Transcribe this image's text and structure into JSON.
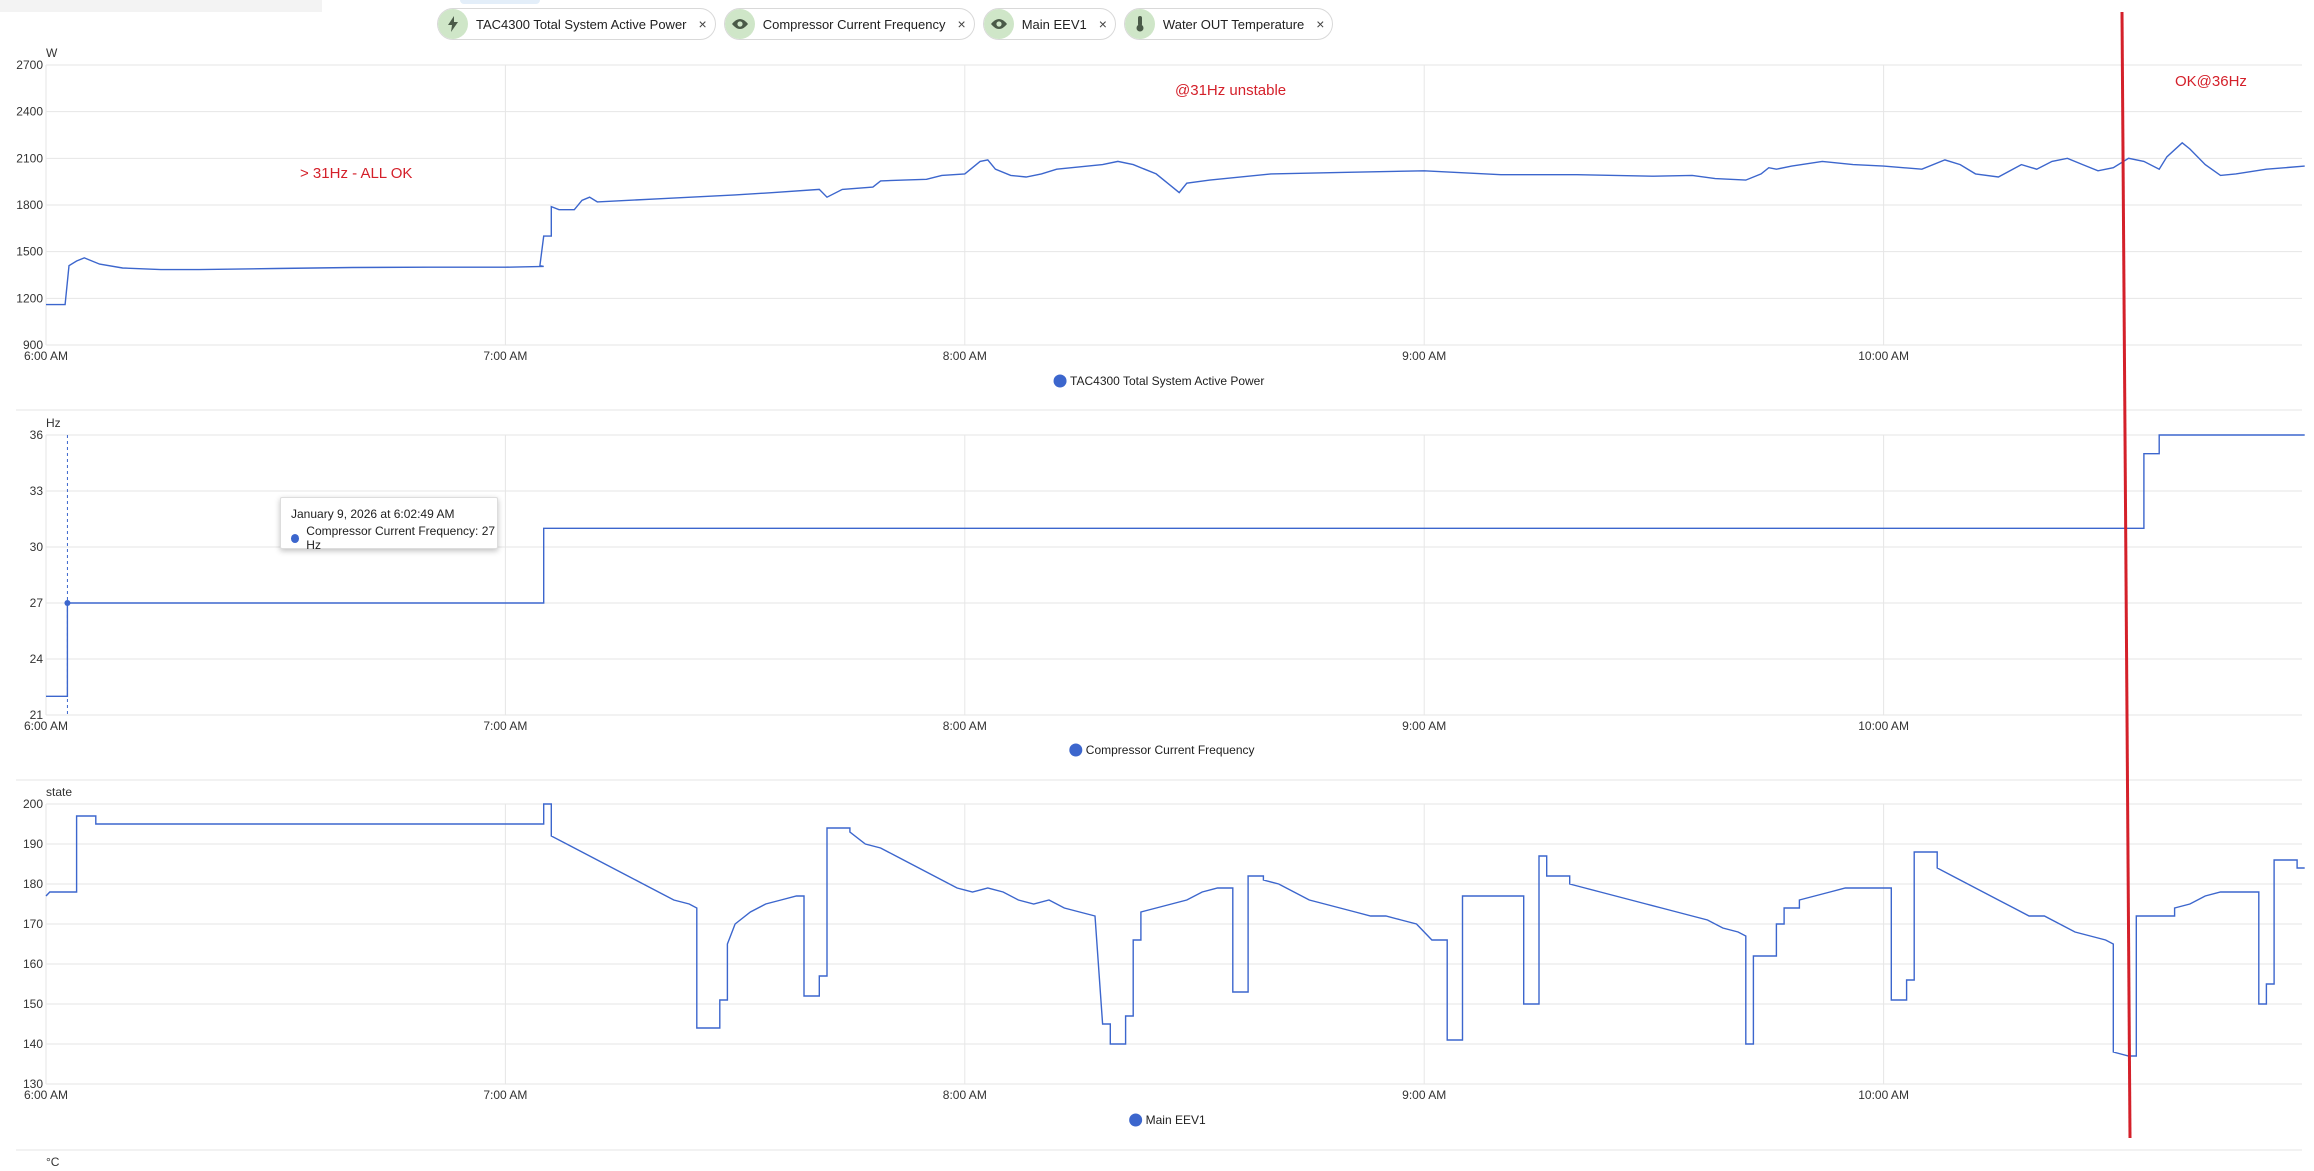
{
  "chips": [
    {
      "label": "TAC4300 Total System Active Power",
      "icon": "lightning-icon"
    },
    {
      "label": "Compressor Current Frequency",
      "icon": "eye-icon"
    },
    {
      "label": "Main EEV1",
      "icon": "eye-icon"
    },
    {
      "label": "Water OUT Temperature",
      "icon": "thermometer-icon"
    }
  ],
  "close_glyph": "×",
  "colors": {
    "series": "#3c66cd",
    "annotation": "#d4202a",
    "grid": "#e6e6e6",
    "chip_icon_bg": "#cfe6c8"
  },
  "tooltip": {
    "title": "January 9, 2026 at 6:02:49 AM",
    "text": "Compressor Current Frequency: 27 Hz"
  },
  "annotations": [
    "> 31Hz - ALL OK",
    "@31Hz unstable",
    "OK@36Hz"
  ],
  "next_panel_unit": "°C",
  "chart_data": [
    {
      "type": "line",
      "name": "TAC4300 Total System Active Power",
      "unit": "W",
      "x_ticks": [
        "6:00 AM",
        "7:00 AM",
        "8:00 AM",
        "9:00 AM",
        "10:00 AM"
      ],
      "yticks": [
        900,
        1200,
        1500,
        1800,
        2100,
        2400,
        2700
      ],
      "ylim": [
        900,
        2700
      ],
      "xlim_minutes": [
        0,
        295
      ],
      "legend": "TAC4300 Total System Active Power",
      "step": false,
      "points": [
        [
          0,
          1160
        ],
        [
          2.5,
          1160
        ],
        [
          3,
          1410
        ],
        [
          4,
          1440
        ],
        [
          5,
          1460
        ],
        [
          7,
          1420
        ],
        [
          10,
          1395
        ],
        [
          15,
          1385
        ],
        [
          20,
          1385
        ],
        [
          30,
          1392
        ],
        [
          40,
          1398
        ],
        [
          50,
          1400
        ],
        [
          60,
          1400
        ],
        [
          65,
          1405
        ],
        [
          64.5,
          1410
        ],
        [
          65,
          1600
        ],
        [
          66,
          1600
        ],
        [
          66,
          1790
        ],
        [
          67,
          1770
        ],
        [
          69,
          1770
        ],
        [
          70,
          1830
        ],
        [
          71,
          1850
        ],
        [
          72,
          1820
        ],
        [
          80,
          1840
        ],
        [
          90,
          1865
        ],
        [
          95,
          1880
        ],
        [
          101,
          1900
        ],
        [
          102,
          1850
        ],
        [
          104,
          1900
        ],
        [
          108,
          1915
        ],
        [
          109,
          1955
        ],
        [
          112,
          1960
        ],
        [
          115,
          1965
        ],
        [
          117,
          1990
        ],
        [
          120,
          2000
        ],
        [
          122,
          2080
        ],
        [
          123,
          2090
        ],
        [
          124,
          2030
        ],
        [
          126,
          1990
        ],
        [
          128,
          1980
        ],
        [
          130,
          2000
        ],
        [
          132,
          2030
        ],
        [
          138,
          2060
        ],
        [
          140,
          2080
        ],
        [
          142,
          2060
        ],
        [
          145,
          2000
        ],
        [
          147,
          1920
        ],
        [
          148,
          1880
        ],
        [
          149,
          1940
        ],
        [
          152,
          1960
        ],
        [
          160,
          2000
        ],
        [
          170,
          2010
        ],
        [
          180,
          2020
        ],
        [
          190,
          1995
        ],
        [
          200,
          1995
        ],
        [
          210,
          1985
        ],
        [
          215,
          1990
        ],
        [
          218,
          1970
        ],
        [
          222,
          1960
        ],
        [
          224,
          2000
        ],
        [
          225,
          2040
        ],
        [
          226,
          2030
        ],
        [
          228,
          2050
        ],
        [
          232,
          2080
        ],
        [
          236,
          2060
        ],
        [
          240,
          2050
        ],
        [
          245,
          2030
        ],
        [
          248,
          2090
        ],
        [
          250,
          2060
        ],
        [
          252,
          2000
        ],
        [
          255,
          1980
        ],
        [
          258,
          2060
        ],
        [
          260,
          2030
        ],
        [
          262,
          2080
        ],
        [
          264,
          2100
        ],
        [
          266,
          2060
        ],
        [
          268,
          2020
        ],
        [
          270,
          2040
        ],
        [
          272,
          2100
        ],
        [
          274,
          2080
        ],
        [
          276,
          2030
        ],
        [
          277,
          2110
        ],
        [
          279,
          2200
        ],
        [
          280,
          2160
        ],
        [
          282,
          2060
        ],
        [
          284,
          1990
        ],
        [
          286,
          2000
        ],
        [
          290,
          2030
        ],
        [
          295,
          2050
        ]
      ]
    },
    {
      "type": "line",
      "name": "Compressor Current Frequency",
      "unit": "Hz",
      "x_ticks": [
        "6:00 AM",
        "7:00 AM",
        "8:00 AM",
        "9:00 AM",
        "10:00 AM"
      ],
      "yticks": [
        21,
        24,
        27,
        30,
        33,
        36
      ],
      "ylim": [
        21,
        36
      ],
      "legend": "Compressor Current Frequency",
      "step": true,
      "points": [
        [
          0,
          22
        ],
        [
          2.8,
          22
        ],
        [
          2.8,
          27
        ],
        [
          65,
          27
        ],
        [
          65,
          31
        ],
        [
          274,
          31
        ],
        [
          274,
          35
        ],
        [
          276,
          35
        ],
        [
          276,
          36
        ],
        [
          295,
          36
        ]
      ]
    },
    {
      "type": "line",
      "name": "Main EEV1",
      "unit": "state",
      "x_ticks": [
        "6:00 AM",
        "7:00 AM",
        "8:00 AM",
        "9:00 AM",
        "10:00 AM"
      ],
      "yticks": [
        130,
        140,
        150,
        160,
        170,
        180,
        190,
        200
      ],
      "ylim": [
        130,
        200
      ],
      "legend": "Main EEV1",
      "step": true,
      "points": [
        [
          0,
          177
        ],
        [
          0.5,
          178
        ],
        [
          4,
          178
        ],
        [
          4,
          197
        ],
        [
          6.5,
          197
        ],
        [
          6.5,
          195
        ],
        [
          65,
          195
        ],
        [
          65,
          200
        ],
        [
          66,
          200
        ],
        [
          66,
          192
        ],
        [
          68,
          190
        ],
        [
          70,
          188
        ],
        [
          72,
          186
        ],
        [
          74,
          184
        ],
        [
          76,
          182
        ],
        [
          78,
          180
        ],
        [
          80,
          178
        ],
        [
          82,
          176
        ],
        [
          84,
          175
        ],
        [
          85,
          174
        ],
        [
          85,
          144
        ],
        [
          88,
          144
        ],
        [
          88,
          151
        ],
        [
          89,
          151
        ],
        [
          89,
          165
        ],
        [
          90,
          170
        ],
        [
          92,
          173
        ],
        [
          94,
          175
        ],
        [
          96,
          176
        ],
        [
          98,
          177
        ],
        [
          99,
          177
        ],
        [
          99,
          152
        ],
        [
          101,
          152
        ],
        [
          101,
          157
        ],
        [
          102,
          157
        ],
        [
          102,
          194
        ],
        [
          105,
          194
        ],
        [
          105,
          193
        ],
        [
          107,
          190
        ],
        [
          109,
          189
        ],
        [
          111,
          187
        ],
        [
          113,
          185
        ],
        [
          115,
          183
        ],
        [
          117,
          181
        ],
        [
          119,
          179
        ],
        [
          121,
          178
        ],
        [
          123,
          179
        ],
        [
          125,
          178
        ],
        [
          127,
          176
        ],
        [
          129,
          175
        ],
        [
          131,
          176
        ],
        [
          133,
          174
        ],
        [
          135,
          173
        ],
        [
          137,
          172
        ],
        [
          138,
          145
        ],
        [
          139,
          145
        ],
        [
          139,
          140
        ],
        [
          141,
          140
        ],
        [
          141,
          147
        ],
        [
          142,
          147
        ],
        [
          142,
          166
        ],
        [
          143,
          166
        ],
        [
          143,
          173
        ],
        [
          145,
          174
        ],
        [
          147,
          175
        ],
        [
          149,
          176
        ],
        [
          151,
          178
        ],
        [
          153,
          179
        ],
        [
          155,
          179
        ],
        [
          155,
          153
        ],
        [
          157,
          153
        ],
        [
          157,
          182
        ],
        [
          159,
          182
        ],
        [
          159,
          181
        ],
        [
          161,
          180
        ],
        [
          163,
          178
        ],
        [
          165,
          176
        ],
        [
          167,
          175
        ],
        [
          169,
          174
        ],
        [
          171,
          173
        ],
        [
          173,
          172
        ],
        [
          175,
          172
        ],
        [
          177,
          171
        ],
        [
          179,
          170
        ],
        [
          181,
          166
        ],
        [
          183,
          166
        ],
        [
          183,
          141
        ],
        [
          185,
          141
        ],
        [
          185,
          177
        ],
        [
          193,
          177
        ],
        [
          193,
          150
        ],
        [
          195,
          150
        ],
        [
          195,
          187
        ],
        [
          196,
          187
        ],
        [
          196,
          182
        ],
        [
          199,
          182
        ],
        [
          199,
          180
        ],
        [
          201,
          179
        ],
        [
          203,
          178
        ],
        [
          205,
          177
        ],
        [
          207,
          176
        ],
        [
          209,
          175
        ],
        [
          211,
          174
        ],
        [
          213,
          173
        ],
        [
          215,
          172
        ],
        [
          217,
          171
        ],
        [
          219,
          169
        ],
        [
          221,
          168
        ],
        [
          222,
          167
        ],
        [
          222,
          140
        ],
        [
          223,
          140
        ],
        [
          223,
          162
        ],
        [
          226,
          162
        ],
        [
          226,
          170
        ],
        [
          227,
          170
        ],
        [
          227,
          174
        ],
        [
          229,
          174
        ],
        [
          229,
          176
        ],
        [
          231,
          177
        ],
        [
          233,
          178
        ],
        [
          235,
          179
        ],
        [
          241,
          179
        ],
        [
          241,
          151
        ],
        [
          243,
          151
        ],
        [
          243,
          156
        ],
        [
          244,
          156
        ],
        [
          244,
          188
        ],
        [
          247,
          188
        ],
        [
          247,
          184
        ],
        [
          249,
          182
        ],
        [
          251,
          180
        ],
        [
          253,
          178
        ],
        [
          255,
          176
        ],
        [
          257,
          174
        ],
        [
          259,
          172
        ],
        [
          261,
          172
        ],
        [
          263,
          170
        ],
        [
          265,
          168
        ],
        [
          267,
          167
        ],
        [
          269,
          166
        ],
        [
          270,
          165
        ],
        [
          270,
          138
        ],
        [
          272,
          137
        ],
        [
          273,
          137
        ],
        [
          273,
          172
        ],
        [
          278,
          172
        ],
        [
          278,
          174
        ],
        [
          280,
          175
        ],
        [
          282,
          177
        ],
        [
          284,
          178
        ],
        [
          289,
          178
        ],
        [
          289,
          150
        ],
        [
          290,
          150
        ],
        [
          290,
          155
        ],
        [
          291,
          155
        ],
        [
          291,
          186
        ],
        [
          294,
          186
        ],
        [
          294,
          184
        ],
        [
          295,
          184
        ]
      ]
    }
  ]
}
